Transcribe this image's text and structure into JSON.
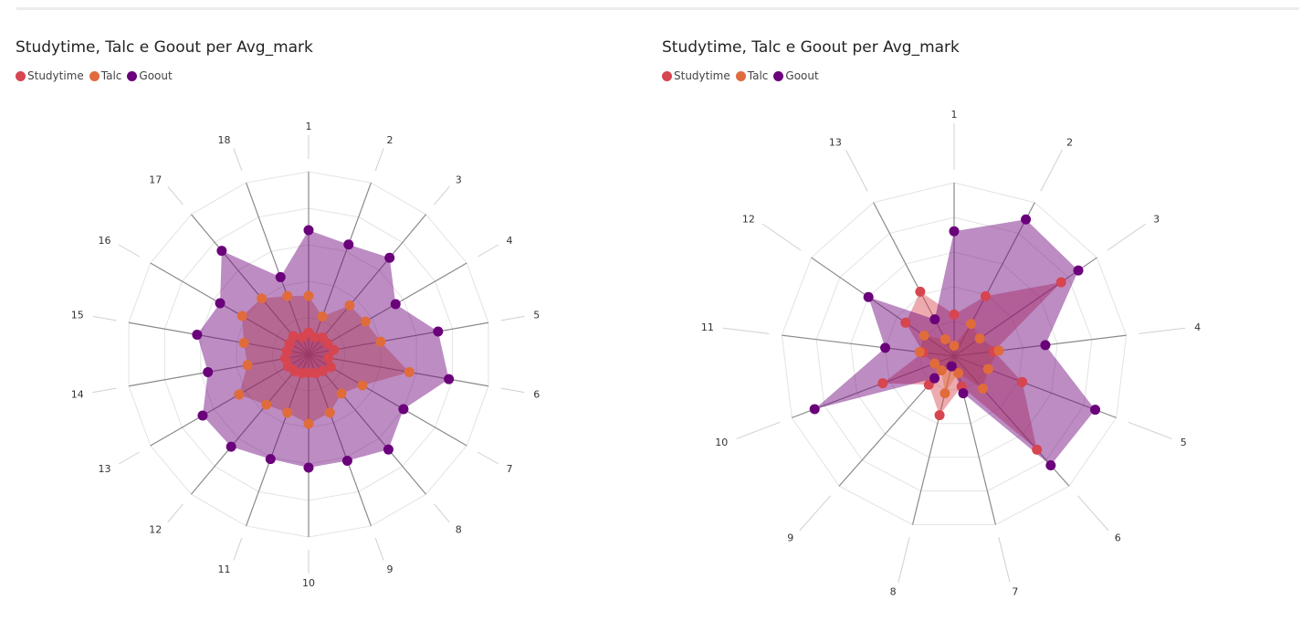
{
  "colors": {
    "Studytime": "#d64550",
    "Talc": "#e06c3c",
    "Goout": "#6b007b"
  },
  "chart_data": [
    {
      "type": "radar",
      "title": "Studytime, Talc e Goout per Avg_mark",
      "legend": "top-left",
      "grid": true,
      "categories": [
        "1",
        "2",
        "3",
        "4",
        "5",
        "6",
        "7",
        "8",
        "9",
        "10",
        "11",
        "12",
        "13",
        "14",
        "15",
        "16",
        "17",
        "18"
      ],
      "rmax": 1.0,
      "series": [
        {
          "name": "Studytime",
          "values": [
            0.12,
            0.1,
            0.12,
            0.12,
            0.14,
            0.11,
            0.14,
            0.12,
            0.11,
            0.1,
            0.11,
            0.12,
            0.13,
            0.13,
            0.12,
            0.12,
            0.13,
            0.1
          ]
        },
        {
          "name": "Talc",
          "values": [
            0.32,
            0.22,
            0.35,
            0.36,
            0.4,
            0.56,
            0.34,
            0.28,
            0.34,
            0.38,
            0.34,
            0.36,
            0.44,
            0.34,
            0.36,
            0.42,
            0.4,
            0.34
          ]
        },
        {
          "name": "Goout",
          "values": [
            0.68,
            0.64,
            0.69,
            0.55,
            0.72,
            0.78,
            0.6,
            0.68,
            0.62,
            0.62,
            0.61,
            0.66,
            0.67,
            0.56,
            0.62,
            0.56,
            0.74,
            0.45
          ]
        }
      ]
    },
    {
      "type": "radar",
      "title": "Studytime, Talc e Goout per Avg_mark",
      "legend": "top-left",
      "grid": true,
      "categories": [
        "1",
        "2",
        "3",
        "4",
        "5",
        "6",
        "7",
        "8",
        "9",
        "10",
        "11",
        "12",
        "13"
      ],
      "rmax": 1.0,
      "series": [
        {
          "name": "Studytime",
          "values": [
            0.24,
            0.39,
            0.75,
            0.23,
            0.42,
            0.72,
            0.18,
            0.35,
            0.22,
            0.44,
            0.18,
            0.34,
            0.42
          ]
        },
        {
          "name": "Talc",
          "values": [
            0.06,
            0.21,
            0.18,
            0.26,
            0.21,
            0.25,
            0.1,
            0.22,
            0.11,
            0.12,
            0.2,
            0.21,
            0.11
          ]
        },
        {
          "name": "Goout",
          "values": [
            0.72,
            0.89,
            0.87,
            0.53,
            0.87,
            0.84,
            0.22,
            0.06,
            0.17,
            0.86,
            0.4,
            0.6,
            0.24
          ]
        }
      ]
    }
  ]
}
